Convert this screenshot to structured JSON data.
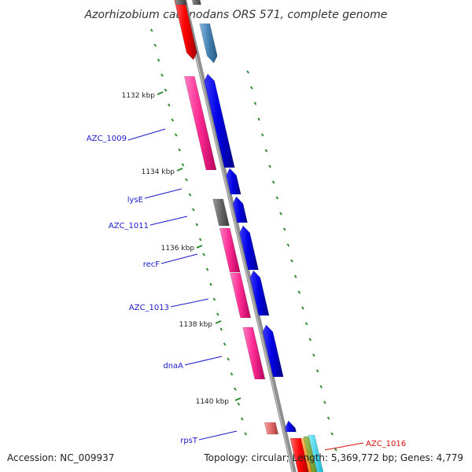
{
  "title": "Azorhizobium caulinodans ORS 571, complete genome",
  "footer": {
    "accession": "Accession: NC_009937",
    "summary": "Topology: circular; Length: 5,369,772 bp; Genes: 4,779"
  },
  "colors": {
    "backbone": "#8f8f8f",
    "tick": "#2e8b2e",
    "label_line": "#1a1acc",
    "label_line_highlight": "#dd1111",
    "cds_forward": "#0000ee",
    "cds_reverse": "#ff2d95",
    "pseudo": "#666666"
  },
  "ticks": [
    {
      "label": "1132 kbp"
    },
    {
      "label": "1134 kbp"
    },
    {
      "label": "1136 kbp"
    },
    {
      "label": "1138 kbp"
    },
    {
      "label": "1140 kbp"
    }
  ],
  "gene_labels": [
    {
      "text": "AZC_1009",
      "highlight": false
    },
    {
      "text": "lysE",
      "highlight": false
    },
    {
      "text": "AZC_1011",
      "highlight": false
    },
    {
      "text": "recF",
      "highlight": false
    },
    {
      "text": "AZC_1013",
      "highlight": false
    },
    {
      "text": "dnaA",
      "highlight": false
    },
    {
      "text": "rpsT",
      "highlight": false
    },
    {
      "text": "AZC_1016",
      "highlight": true
    }
  ]
}
